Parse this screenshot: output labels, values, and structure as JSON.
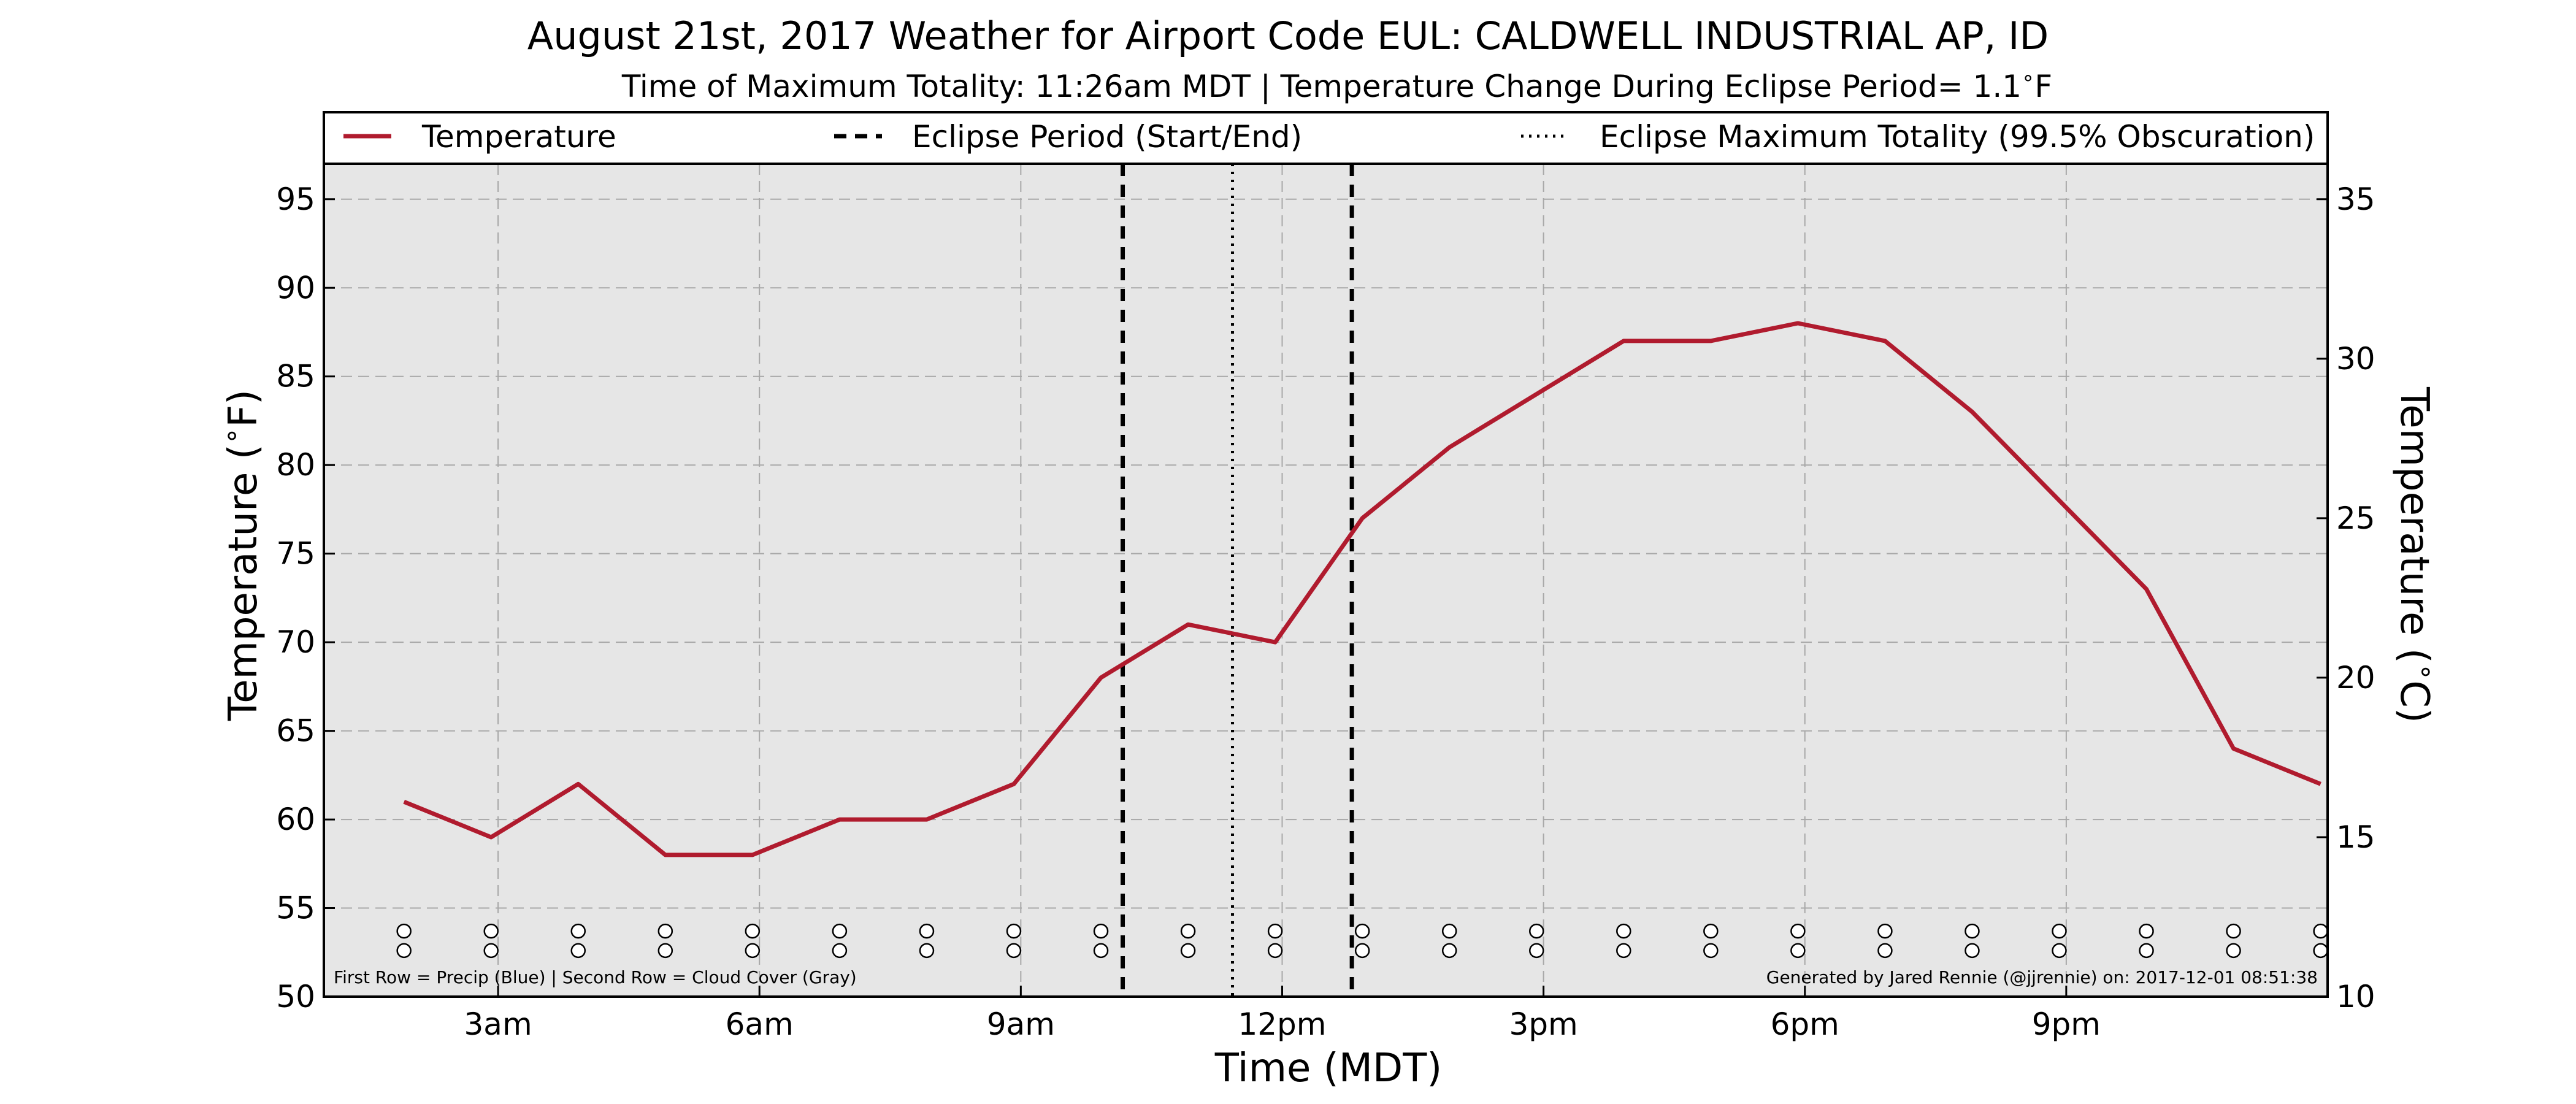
{
  "chart_data": {
    "type": "line",
    "title": "August 21st, 2017 Weather for Airport Code EUL: CALDWELL INDUSTRIAL AP, ID",
    "subtitle_prefix": "Time of Maximum Totality: 11:26am MDT | Temperature Change During Eclipse Period= 1.1",
    "subtitle_unit": "F",
    "xlabel": "Time (MDT)",
    "ylabel_left": "Temperature (",
    "ylabel_left_unit": "F)",
    "ylabel_right": "Temperature (",
    "ylabel_right_unit": "C)",
    "degree_symbol": "∘",
    "xlim_hours": [
      1.0,
      24.0
    ],
    "ylim": [
      50,
      97
    ],
    "y_right_lim_c": [
      10,
      36.11
    ],
    "x_ticks": [
      {
        "hour": 3,
        "label": "3am"
      },
      {
        "hour": 6,
        "label": "6am"
      },
      {
        "hour": 9,
        "label": "9am"
      },
      {
        "hour": 12,
        "label": "12pm"
      },
      {
        "hour": 15,
        "label": "3pm"
      },
      {
        "hour": 18,
        "label": "6pm"
      },
      {
        "hour": 21,
        "label": "9pm"
      }
    ],
    "y_ticks_f": [
      50,
      55,
      60,
      65,
      70,
      75,
      80,
      85,
      90,
      95
    ],
    "y_ticks_c": [
      10,
      15,
      20,
      25,
      30,
      35
    ],
    "grid": true,
    "legend_position": "top",
    "series": [
      {
        "name": "Temperature",
        "color": "#b01b2e",
        "x_hours": [
          1.92,
          2.92,
          3.92,
          4.92,
          5.92,
          6.92,
          7.92,
          8.92,
          9.92,
          10.92,
          11.92,
          12.92,
          13.92,
          14.92,
          15.92,
          16.92,
          17.92,
          18.92,
          19.92,
          20.92,
          21.92,
          22.92,
          23.92
        ],
        "values": [
          61,
          59,
          62,
          58,
          58,
          60,
          60,
          62,
          68,
          71,
          70,
          77,
          81,
          84,
          87,
          87,
          88,
          87,
          83,
          78,
          73,
          64,
          62
        ]
      }
    ],
    "eclipse_start_hour": 10.17,
    "eclipse_end_hour": 12.8,
    "eclipse_max_hour": 11.43,
    "legend": {
      "temperature": "Temperature",
      "eclipse_period": "Eclipse Period (Start/End)",
      "eclipse_max": "Eclipse Maximum Totality (99.5% Obscuration)"
    },
    "marker_rows": {
      "hours": [
        1.92,
        2.92,
        3.92,
        4.92,
        5.92,
        6.92,
        7.92,
        8.92,
        9.92,
        10.92,
        11.92,
        12.92,
        13.92,
        14.92,
        15.92,
        16.92,
        17.92,
        18.92,
        19.92,
        20.92,
        21.92,
        22.92,
        23.92
      ],
      "precip_row_f": 53.7,
      "cloud_row_f": 52.6,
      "precip_color": "#ffffff",
      "cloud_color": "#ffffff"
    },
    "footnote_left": "First Row = Precip (Blue) | Second Row = Cloud Cover (Gray)",
    "footnote_right": "Generated by Jared Rennie (@jjrennie) on: 2017-12-01 08:51:38",
    "colors": {
      "plot_background": "#e6e6e6",
      "grid": "#a8a8a8",
      "eclipse_lines": "#000000"
    }
  }
}
